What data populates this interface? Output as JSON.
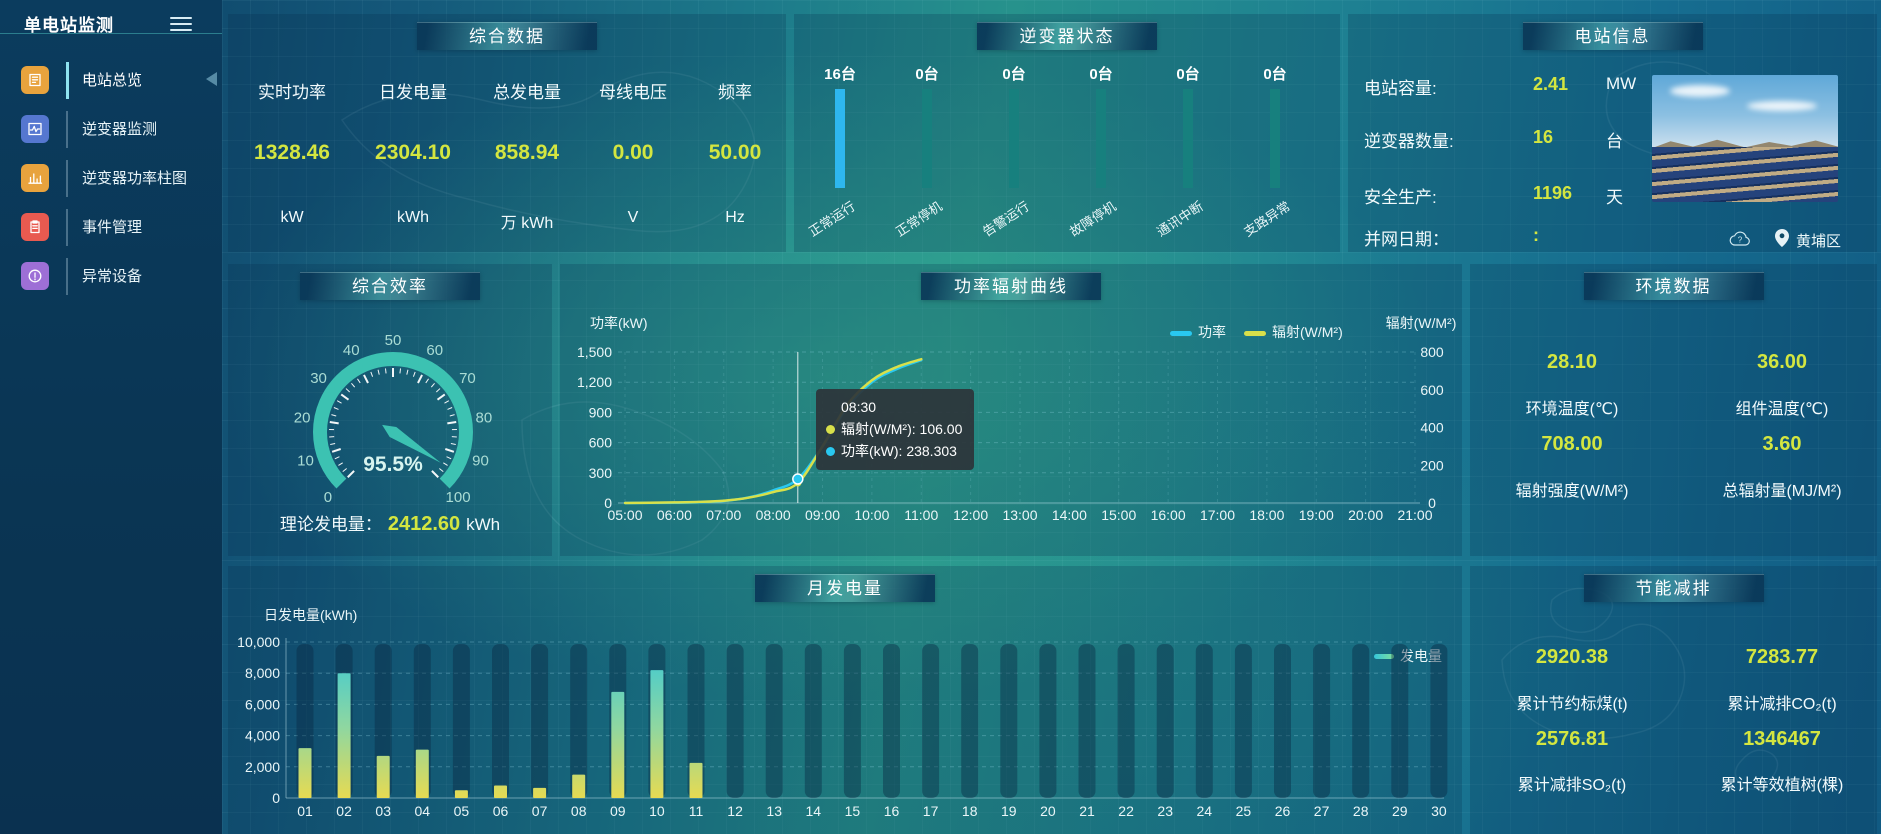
{
  "app": {
    "title": "单电站监测"
  },
  "sidebar": {
    "items": [
      {
        "label": "电站总览",
        "icon": "overview-icon",
        "color": "#e8a33d",
        "active": true
      },
      {
        "label": "逆变器监测",
        "icon": "inverter-monitor-icon",
        "color": "#5577d0",
        "active": false
      },
      {
        "label": "逆变器功率柱图",
        "icon": "power-bar-icon",
        "color": "#e8a33d",
        "active": false
      },
      {
        "label": "事件管理",
        "icon": "event-icon",
        "color": "#e85a50",
        "active": false
      },
      {
        "label": "异常设备",
        "icon": "abnormal-device-icon",
        "color": "#9d6fd6",
        "active": false
      }
    ]
  },
  "summary": {
    "title": "综合数据",
    "metrics": [
      {
        "label": "实时功率",
        "value": "1328.46",
        "unit": "kW"
      },
      {
        "label": "日发电量",
        "value": "2304.10",
        "unit": "kWh"
      },
      {
        "label": "总发电量",
        "value": "858.94",
        "unit": "万 kWh"
      },
      {
        "label": "母线电压",
        "value": "0.00",
        "unit": "V"
      },
      {
        "label": "频率",
        "value": "50.00",
        "unit": "Hz"
      }
    ]
  },
  "inverter_status": {
    "title": "逆变器状态"
  },
  "station_info": {
    "title": "电站信息",
    "rows": [
      {
        "label": "电站容量:",
        "value": "2.41",
        "unit": "MW"
      },
      {
        "label": "逆变器数量:",
        "value": "16",
        "unit": "台"
      },
      {
        "label": "安全生产:",
        "value": "1196",
        "unit": "天"
      },
      {
        "label": "并网日期：",
        "value": ":",
        "unit": ""
      }
    ],
    "location": "黄埔区"
  },
  "efficiency": {
    "title": "综合效率",
    "theory_label": "理论发电量：",
    "theory_value": "2412.60",
    "theory_unit": "kWh"
  },
  "power_curve": {
    "title": "功率辐射曲线"
  },
  "environment": {
    "title": "环境数据",
    "items": [
      {
        "value": "28.10",
        "label": "环境温度(℃)"
      },
      {
        "value": "36.00",
        "label": "组件温度(℃)"
      },
      {
        "value": "708.00",
        "label": "辐射强度(W/M²)"
      },
      {
        "value": "3.60",
        "label": "总辐射量(MJ/M²)"
      }
    ]
  },
  "monthly": {
    "title": "月发电量"
  },
  "saving": {
    "title": "节能减排",
    "items": [
      {
        "value": "2920.38",
        "label": "累计节约标煤(t)"
      },
      {
        "value": "7283.77",
        "label": "累计减排CO₂(t)"
      },
      {
        "value": "2576.81",
        "label": "累计减排SO₂(t)"
      },
      {
        "value": "1346467",
        "label": "累计等效植树(棵)"
      }
    ]
  },
  "colors": {
    "value_text": "#d4e640",
    "power_line": "#29c8f0",
    "radiation_line": "#d8e04a",
    "gauge": "#3cc2b2",
    "inverter_highlight": "#2eb7ef",
    "inverter_normal": "#17807e"
  },
  "chart_data": [
    {
      "id": "inverter_status",
      "type": "bar",
      "title": "逆变器状态",
      "categories": [
        "正常运行",
        "正常停机",
        "告警运行",
        "故障停机",
        "通讯中断",
        "支路异常"
      ],
      "values": [
        16,
        0,
        0,
        0,
        0,
        0
      ],
      "value_labels": [
        "16台",
        "0台",
        "0台",
        "0台",
        "0台",
        "0台"
      ],
      "note": "status columns drawn equal height; first column highlighted blue"
    },
    {
      "id": "power_radiation",
      "type": "line",
      "title": "功率辐射曲线",
      "x_ticks": [
        "05:00",
        "06:00",
        "07:00",
        "08:00",
        "09:00",
        "10:00",
        "11:00",
        "12:00",
        "13:00",
        "14:00",
        "15:00",
        "16:00",
        "17:00",
        "18:00",
        "19:00",
        "20:00",
        "21:00"
      ],
      "left_axis": {
        "label": "功率(kW)",
        "max": 1500,
        "ticks": [
          "0",
          "300",
          "600",
          "900",
          "1,200",
          "1,500"
        ]
      },
      "right_axis": {
        "label": "辐射(W/M²)",
        "max": 800,
        "ticks": [
          "0",
          "200",
          "400",
          "600",
          "800"
        ]
      },
      "legend": [
        "功率",
        "辐射(W/M²)"
      ],
      "series": [
        {
          "name": "功率",
          "axis": "left",
          "color": "#29c8f0",
          "points": [
            [
              "05:00",
              0
            ],
            [
              "05:30",
              1
            ],
            [
              "06:00",
              3
            ],
            [
              "06:30",
              8
            ],
            [
              "07:00",
              20
            ],
            [
              "07:30",
              55
            ],
            [
              "08:00",
              125
            ],
            [
              "08:30",
              238.303
            ],
            [
              "09:00",
              560
            ],
            [
              "09:30",
              950
            ],
            [
              "10:00",
              1200
            ],
            [
              "10:30",
              1330
            ],
            [
              "11:00",
              1420
            ]
          ]
        },
        {
          "name": "辐射(W/M²)",
          "axis": "right",
          "color": "#d8e04a",
          "points": [
            [
              "05:00",
              0
            ],
            [
              "05:30",
              1
            ],
            [
              "06:00",
              3
            ],
            [
              "06:30",
              6
            ],
            [
              "07:00",
              12
            ],
            [
              "07:30",
              28
            ],
            [
              "08:00",
              58
            ],
            [
              "08:30",
              106
            ],
            [
              "09:00",
              300
            ],
            [
              "09:30",
              520
            ],
            [
              "10:00",
              650
            ],
            [
              "10:30",
              720
            ],
            [
              "11:00",
              762
            ]
          ]
        }
      ],
      "tooltip": {
        "time": "08:30",
        "rows": [
          {
            "color": "#d8e04a",
            "text": "辐射(W/M²): 106.00"
          },
          {
            "color": "#29c8f0",
            "text": "功率(kW): 238.303"
          }
        ]
      }
    },
    {
      "id": "monthly_generation",
      "type": "bar",
      "title": "月发电量",
      "ylabel": "日发电量(kWh)",
      "legend": "发电量",
      "ymax": 10000,
      "y_ticks": [
        "0",
        "2,000",
        "4,000",
        "6,000",
        "8,000",
        "10,000"
      ],
      "categories": [
        "01",
        "02",
        "03",
        "04",
        "05",
        "06",
        "07",
        "08",
        "09",
        "10",
        "11",
        "12",
        "13",
        "14",
        "15",
        "16",
        "17",
        "18",
        "19",
        "20",
        "21",
        "22",
        "23",
        "24",
        "25",
        "26",
        "27",
        "28",
        "29",
        "30"
      ],
      "values": [
        3200,
        8000,
        2700,
        3100,
        500,
        800,
        650,
        1500,
        6800,
        8200,
        2250,
        0,
        0,
        0,
        0,
        0,
        0,
        0,
        0,
        0,
        0,
        0,
        0,
        0,
        0,
        0,
        0,
        0,
        0,
        0
      ]
    },
    {
      "id": "efficiency_gauge",
      "type": "gauge",
      "min": 0,
      "max": 100,
      "value": 95.5,
      "display": "95.5%",
      "tick_labels": [
        "0",
        "10",
        "20",
        "30",
        "40",
        "50",
        "60",
        "70",
        "80",
        "90",
        "100"
      ]
    }
  ]
}
